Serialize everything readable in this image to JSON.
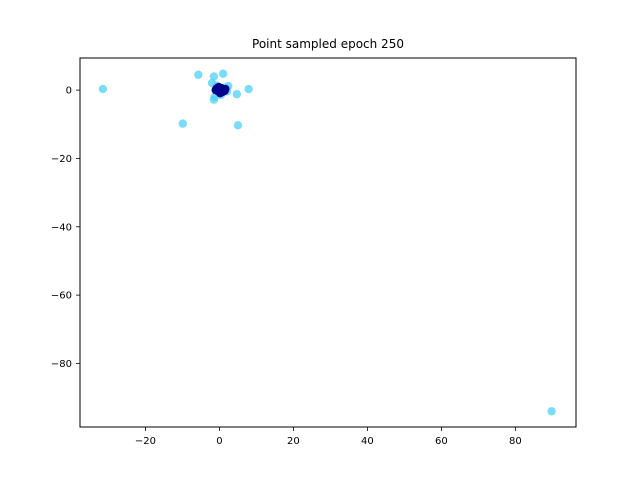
{
  "chart_data": {
    "type": "scatter",
    "title": "Point sampled epoch 250",
    "xlabel": "",
    "ylabel": "",
    "xlim": [
      -37.7,
      96.4
    ],
    "ylim": [
      -98.6,
      9.4
    ],
    "grid": false,
    "legend": "none",
    "x_ticks": [
      -20,
      0,
      20,
      40,
      60,
      80
    ],
    "y_ticks": [
      0,
      -20,
      -40,
      -60,
      -80
    ],
    "series": [
      {
        "color": "#4fd0f5",
        "points": [
          [
            -31.5,
            0.3
          ],
          [
            -5.7,
            4.5
          ],
          [
            -1.5,
            4.0
          ],
          [
            1.0,
            4.8
          ],
          [
            2.4,
            1.2
          ],
          [
            -2.0,
            2.1
          ],
          [
            -1.3,
            -2.0
          ],
          [
            -1.5,
            -2.8
          ],
          [
            4.7,
            -1.2
          ],
          [
            7.9,
            0.3
          ],
          [
            -9.9,
            -9.8
          ],
          [
            5.0,
            -10.3
          ],
          [
            89.8,
            -94.0
          ],
          [
            -0.6,
            1.3
          ],
          [
            1.6,
            0.7
          ],
          [
            0.4,
            -1.4
          ],
          [
            -0.9,
            0.8
          ],
          [
            2.0,
            -0.4
          ]
        ]
      },
      {
        "color": "#00008b",
        "points": [
          [
            -0.8,
            0.4
          ],
          [
            -0.2,
            0.9
          ],
          [
            0.5,
            0.6
          ],
          [
            1.0,
            0.2
          ],
          [
            1.4,
            -0.2
          ],
          [
            0.9,
            -0.5
          ],
          [
            0.3,
            -0.6
          ],
          [
            -0.4,
            -0.3
          ],
          [
            -1.0,
            0.0
          ],
          [
            -0.5,
            0.1
          ],
          [
            0.1,
            0.2
          ],
          [
            0.6,
            -0.1
          ],
          [
            1.6,
            0.3
          ],
          [
            0.2,
            -0.9
          ],
          [
            -0.1,
            0.5
          ]
        ]
      }
    ]
  }
}
